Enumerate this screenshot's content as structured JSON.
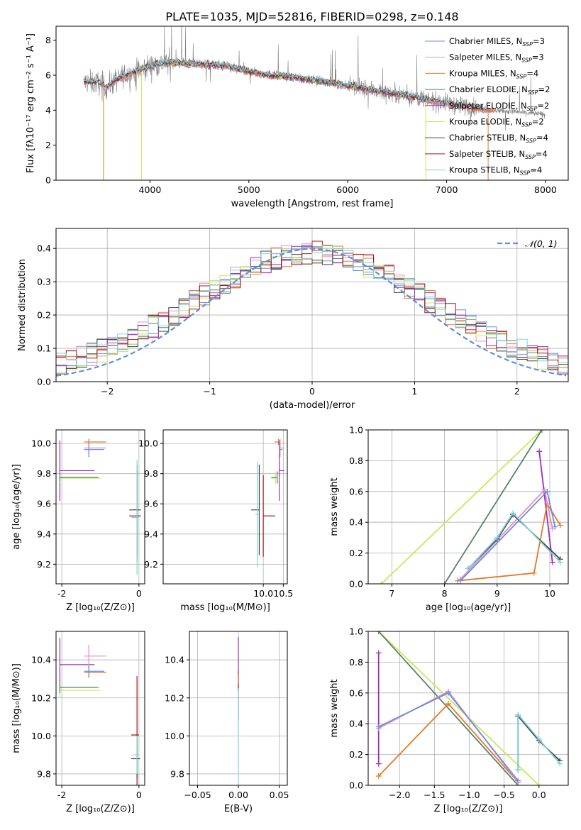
{
  "title": "PLATE=1035, MJD=52816, FIBERID=0298, z=0.148",
  "colors": {
    "chabrier_miles": "#6a8ee0",
    "salpeter_miles": "#ea8cc4",
    "kroupa_miles": "#e07b2a",
    "chabrier_elodie": "#55836a",
    "salpeter_elodie": "#9a2fb5",
    "kroupa_elodie": "#c8e85a",
    "chabrier_stelib": "#444444",
    "salpeter_stelib": "#a21818",
    "kroupa_stelib": "#7fd3df",
    "data": "#808080",
    "normal": "#5f8fd8"
  },
  "legend1": [
    {
      "key": "chabrier_miles",
      "name": "Chabrier MILES, N",
      "sub": "SSP",
      "val": "=3"
    },
    {
      "key": "salpeter_miles",
      "name": "Salpeter MILES, N",
      "sub": "SSP",
      "val": "=3"
    },
    {
      "key": "kroupa_miles",
      "name": "Kroupa MILES, N",
      "sub": "SSP",
      "val": "=4"
    },
    {
      "key": "chabrier_elodie",
      "name": "Chabrier ELODIE, N",
      "sub": "SSP",
      "val": "=2"
    },
    {
      "key": "salpeter_elodie",
      "name": "Salpeter ELODIE, N",
      "sub": "SSP",
      "val": "=2"
    },
    {
      "key": "kroupa_elodie",
      "name": "Kroupa ELODIE, N",
      "sub": "SSP",
      "val": "=2"
    },
    {
      "key": "chabrier_stelib",
      "name": "Chabrier STELIB, N",
      "sub": "SSP",
      "val": "=4"
    },
    {
      "key": "salpeter_stelib",
      "name": "Salpeter STELIB, N",
      "sub": "SSP",
      "val": "=4"
    },
    {
      "key": "kroupa_stelib",
      "name": "Kroupa STELIB, N",
      "sub": "SSP",
      "val": "=4"
    }
  ],
  "legend2": {
    "label": "𝒩(0, 1)"
  },
  "chart_data": [
    {
      "id": "spectrum",
      "type": "line",
      "xlabel": "wavelength [Angstrom, rest frame]",
      "ylabel": "Flux [fλ10⁻¹⁷ erg cm⁻² s⁻¹ A⁻¹]",
      "xlim": [
        3050,
        8230
      ],
      "ylim": [
        0,
        8.8
      ],
      "xticks": [
        4000,
        5000,
        6000,
        7000,
        8000
      ],
      "yticks": [
        0,
        2,
        4,
        6,
        8
      ],
      "continuum": [
        [
          3340,
          5.6
        ],
        [
          3500,
          5.55
        ],
        [
          3560,
          5.3
        ],
        [
          3650,
          5.7
        ],
        [
          3750,
          6.0
        ],
        [
          3850,
          6.2
        ],
        [
          3950,
          6.45
        ],
        [
          4050,
          6.6
        ],
        [
          4150,
          6.7
        ],
        [
          4300,
          6.7
        ],
        [
          4450,
          6.65
        ],
        [
          4600,
          6.6
        ],
        [
          4800,
          6.5
        ],
        [
          5000,
          6.2
        ],
        [
          5200,
          6.0
        ],
        [
          5500,
          5.85
        ],
        [
          5800,
          5.6
        ],
        [
          6000,
          5.4
        ],
        [
          6200,
          5.2
        ],
        [
          6400,
          5.0
        ],
        [
          6600,
          4.85
        ],
        [
          6800,
          4.6
        ],
        [
          7000,
          4.4
        ],
        [
          7200,
          4.2
        ],
        [
          7400,
          4.05
        ],
        [
          7600,
          3.95
        ],
        [
          7800,
          3.85
        ],
        [
          8000,
          3.75
        ]
      ]
    },
    {
      "id": "residuals",
      "type": "step-histogram",
      "xlabel": "(data-model)/error",
      "ylabel": "Normed distribution",
      "xlim": [
        -2.5,
        2.5
      ],
      "ylim": [
        0,
        0.46
      ],
      "xticks": [
        -2,
        -1,
        0,
        1,
        2
      ],
      "yticks": [
        0.0,
        0.1,
        0.2,
        0.3,
        0.4
      ]
    },
    {
      "id": "age_vs_Z",
      "type": "errorbar",
      "xlabel": "Z [log₁₀(Z/Z⊙)]",
      "ylabel": "age  [log₁₀(age/yr)]",
      "xlim": [
        -2.15,
        0.15
      ],
      "ylim": [
        9.07,
        10.09
      ],
      "xticks": [
        -2,
        0
      ],
      "yticks": [
        9.2,
        9.4,
        9.6,
        9.8,
        10.0
      ],
      "points": [
        {
          "key": "salpeter_elodie",
          "x": -2.05,
          "y": 9.82,
          "xerr": [
            0.0,
            0.9
          ],
          "yerr": 0.2
        },
        {
          "key": "kroupa_elodie",
          "x": -2.05,
          "y": 9.77,
          "xerr": [
            0.0,
            1.05
          ],
          "yerr": 0.03
        },
        {
          "key": "chabrier_elodie",
          "x": -2.05,
          "y": 9.775,
          "xerr": [
            0.0,
            1.0
          ],
          "yerr": 0.03
        },
        {
          "key": "salpeter_miles",
          "x": -1.3,
          "y": 9.97,
          "xerr": [
            0.12,
            0.45
          ],
          "yerr": 0.06
        },
        {
          "key": "chabrier_miles",
          "x": -1.3,
          "y": 9.96,
          "xerr": [
            0.12,
            0.4
          ],
          "yerr": 0.05
        },
        {
          "key": "kroupa_miles",
          "x": -1.3,
          "y": 10.01,
          "xerr": [
            0.12,
            0.45
          ],
          "yerr": 0.02
        },
        {
          "key": "chabrier_stelib",
          "x": -0.05,
          "y": 9.56,
          "xerr": [
            0.2,
            0.1
          ],
          "yerr": 0.3
        },
        {
          "key": "salpeter_stelib",
          "x": -0.05,
          "y": 9.52,
          "xerr": [
            0.2,
            0.1
          ],
          "yerr": 0.3
        },
        {
          "key": "kroupa_stelib",
          "x": -0.05,
          "y": 9.51,
          "xerr": [
            0.15,
            0.05
          ],
          "yerr": 0.38
        }
      ]
    },
    {
      "id": "age_vs_mass",
      "type": "errorbar",
      "xlabel": "mass [log₁₀(M/M⊙)]",
      "ylabel": "",
      "xlim": [
        7.5,
        10.6
      ],
      "ylim": [
        9.07,
        10.09
      ],
      "xticks": [
        7.5,
        10.0,
        10.5
      ],
      "yticks": [
        9.2,
        9.4,
        9.6,
        9.8,
        10.0
      ],
      "points": [
        {
          "key": "chabrier_stelib",
          "x": 9.9,
          "y": 9.56,
          "xerr": [
            0.2,
            0.0
          ],
          "yerr": 0.3
        },
        {
          "key": "salpeter_stelib",
          "x": 10.0,
          "y": 9.52,
          "xerr": [
            0.0,
            0.3
          ],
          "yerr": 0.27
        },
        {
          "key": "kroupa_stelib",
          "x": 9.85,
          "y": 9.53,
          "xerr": [
            0.05,
            0.05
          ],
          "yerr": 0.35
        },
        {
          "key": "salpeter_elodie",
          "x": 10.4,
          "y": 9.82,
          "xerr": [
            0.0,
            0.12
          ],
          "yerr": 0.2
        },
        {
          "key": "kroupa_elodie",
          "x": 10.3,
          "y": 9.77,
          "xerr": [
            0.1,
            0.0
          ],
          "yerr": 0.04
        },
        {
          "key": "chabrier_elodie",
          "x": 10.35,
          "y": 9.775,
          "xerr": [
            0.15,
            0.0
          ],
          "yerr": 0.04
        },
        {
          "key": "salpeter_miles",
          "x": 10.42,
          "y": 9.97,
          "xerr": [
            0.0,
            0.1
          ],
          "yerr": 0.06
        },
        {
          "key": "kroupa_miles",
          "x": 10.38,
          "y": 10.01,
          "xerr": [
            0.1,
            0.0
          ],
          "yerr": 0.02
        },
        {
          "key": "chabrier_miles",
          "x": 10.4,
          "y": 9.96,
          "xerr": [
            0.0,
            0.08
          ],
          "yerr": 0.03
        }
      ]
    },
    {
      "id": "weight_vs_age",
      "type": "line",
      "xlabel": "age  [log₁₀(age/yr)]",
      "ylabel": "mass weight",
      "xlim": [
        6.55,
        10.35
      ],
      "ylim": [
        0,
        1.0
      ],
      "xticks": [
        7,
        8,
        9,
        10
      ],
      "yticks": [
        0.0,
        0.2,
        0.4,
        0.6,
        0.8,
        1.0
      ],
      "series": [
        {
          "key": "kroupa_elodie",
          "x": [
            6.8,
            9.85
          ],
          "y": [
            0.0,
            1.0
          ]
        },
        {
          "key": "chabrier_elodie",
          "x": [
            8.0,
            9.85
          ],
          "y": [
            0.0,
            1.0
          ]
        },
        {
          "key": "salpeter_elodie",
          "x": [
            9.8,
            10.05
          ],
          "y": [
            0.86,
            0.14
          ]
        },
        {
          "key": "kroupa_miles",
          "x": [
            8.25,
            9.7,
            9.95,
            10.2
          ],
          "y": [
            0.02,
            0.07,
            0.52,
            0.38
          ]
        },
        {
          "key": "salpeter_miles",
          "x": [
            8.3,
            9.9,
            10.05
          ],
          "y": [
            0.03,
            0.61,
            0.36
          ]
        },
        {
          "key": "chabrier_miles",
          "x": [
            8.3,
            9.95,
            10.1
          ],
          "y": [
            0.02,
            0.6,
            0.37
          ]
        },
        {
          "key": "chabrier_stelib",
          "x": [
            8.45,
            9.0,
            9.3,
            10.2
          ],
          "y": [
            0.1,
            0.29,
            0.45,
            0.16
          ]
        },
        {
          "key": "kroupa_stelib",
          "x": [
            8.45,
            9.0,
            9.3,
            10.2
          ],
          "y": [
            0.1,
            0.3,
            0.46,
            0.14
          ]
        }
      ]
    },
    {
      "id": "mass_vs_Z",
      "type": "errorbar",
      "xlabel": "Z [log₁₀(Z/Z⊙)]",
      "ylabel": "mass [log₁₀(M/M⊙)]",
      "xlim": [
        -2.15,
        0.15
      ],
      "ylim": [
        9.74,
        10.55
      ],
      "xticks": [
        -2,
        0
      ],
      "yticks": [
        9.8,
        10.0,
        10.2,
        10.4
      ],
      "points": [
        {
          "key": "salpeter_elodie",
          "x": -2.05,
          "y": 10.375,
          "xerr": [
            0.0,
            0.9
          ],
          "yerr": 0.14
        },
        {
          "key": "kroupa_elodie",
          "x": -2.05,
          "y": 10.24,
          "xerr": [
            0.0,
            1.05
          ],
          "yerr": 0.04
        },
        {
          "key": "chabrier_elodie",
          "x": -2.05,
          "y": 10.255,
          "xerr": [
            0.0,
            1.0
          ],
          "yerr": 0.03
        },
        {
          "key": "salpeter_miles",
          "x": -1.3,
          "y": 10.42,
          "xerr": [
            0.12,
            0.45
          ],
          "yerr": 0.06
        },
        {
          "key": "kroupa_miles",
          "x": -1.3,
          "y": 10.335,
          "xerr": [
            0.12,
            0.45
          ],
          "yerr": 0.03
        },
        {
          "key": "chabrier_miles",
          "x": -1.3,
          "y": 10.34,
          "xerr": [
            0.12,
            0.4
          ],
          "yerr": 0.03
        },
        {
          "key": "salpeter_stelib",
          "x": -0.05,
          "y": 10.005,
          "xerr": [
            0.15,
            0.05
          ],
          "yerr": 0.31
        },
        {
          "key": "chabrier_stelib",
          "x": -0.05,
          "y": 9.88,
          "xerr": [
            0.15,
            0.08
          ],
          "yerr": 0.1
        },
        {
          "key": "kroupa_stelib",
          "x": -0.05,
          "y": 9.9,
          "xerr": [
            0.1,
            0.05
          ],
          "yerr": 0.1
        }
      ]
    },
    {
      "id": "mass_vs_ebv",
      "type": "errorbar",
      "xlabel": "E(B-V)",
      "ylabel": "",
      "xlim": [
        -0.06,
        0.06
      ],
      "ylim": [
        9.74,
        10.55
      ],
      "xticks": [
        -0.05,
        0.0,
        0.05
      ],
      "yticks": [
        9.8,
        10.0,
        10.2,
        10.4
      ],
      "points": [
        {
          "key": "salpeter_elodie",
          "x": 0.0,
          "y": 10.3,
          "xerr": [
            0.0,
            0.0
          ],
          "yerr": 0.22
        },
        {
          "key": "salpeter_stelib",
          "x": 0.0,
          "y": 10.29,
          "xerr": [
            0.0,
            0.0
          ],
          "yerr": 0.05
        },
        {
          "key": "kroupa_miles",
          "x": 0.0,
          "y": 10.3,
          "xerr": [
            0.0,
            0.0
          ],
          "yerr": 0.03
        },
        {
          "key": "kroupa_stelib",
          "x": 0.0,
          "y": 10.0,
          "xerr": [
            0.0,
            0.0
          ],
          "yerr": 0.25
        }
      ]
    },
    {
      "id": "weight_vs_Z",
      "type": "line",
      "xlabel": "Z [log₁₀(Z/Z⊙)]",
      "ylabel": "mass weight",
      "xlim": [
        -2.45,
        0.42
      ],
      "ylim": [
        0,
        1.0
      ],
      "xticks": [
        -2.0,
        -1.5,
        -1.0,
        -0.5,
        0.0
      ],
      "yticks": [
        0.0,
        0.2,
        0.4,
        0.6,
        0.8,
        1.0
      ],
      "series": [
        {
          "key": "kroupa_elodie",
          "x": [
            -2.3,
            0.0
          ],
          "y": [
            1.0,
            0.0
          ]
        },
        {
          "key": "chabrier_elodie",
          "x": [
            -2.3,
            -0.3
          ],
          "y": [
            1.0,
            0.0
          ]
        },
        {
          "key": "salpeter_elodie",
          "x": [
            -2.3,
            -2.3
          ],
          "y": [
            0.86,
            0.14
          ]
        },
        {
          "key": "kroupa_miles",
          "x": [
            -2.3,
            -1.3,
            -0.3
          ],
          "y": [
            0.06,
            0.53,
            0.02
          ]
        },
        {
          "key": "salpeter_miles",
          "x": [
            -2.3,
            -1.3,
            -0.3
          ],
          "y": [
            0.37,
            0.61,
            0.02
          ]
        },
        {
          "key": "chabrier_miles",
          "x": [
            -2.3,
            -1.3,
            -0.3
          ],
          "y": [
            0.38,
            0.6,
            0.03
          ]
        },
        {
          "key": "chabrier_stelib",
          "x": [
            -0.3,
            -0.3,
            0.0,
            0.3
          ],
          "y": [
            0.1,
            0.45,
            0.29,
            0.16
          ]
        },
        {
          "key": "kroupa_stelib",
          "x": [
            -0.3,
            -0.3,
            0.0,
            0.3
          ],
          "y": [
            0.1,
            0.46,
            0.3,
            0.14
          ]
        }
      ]
    }
  ]
}
